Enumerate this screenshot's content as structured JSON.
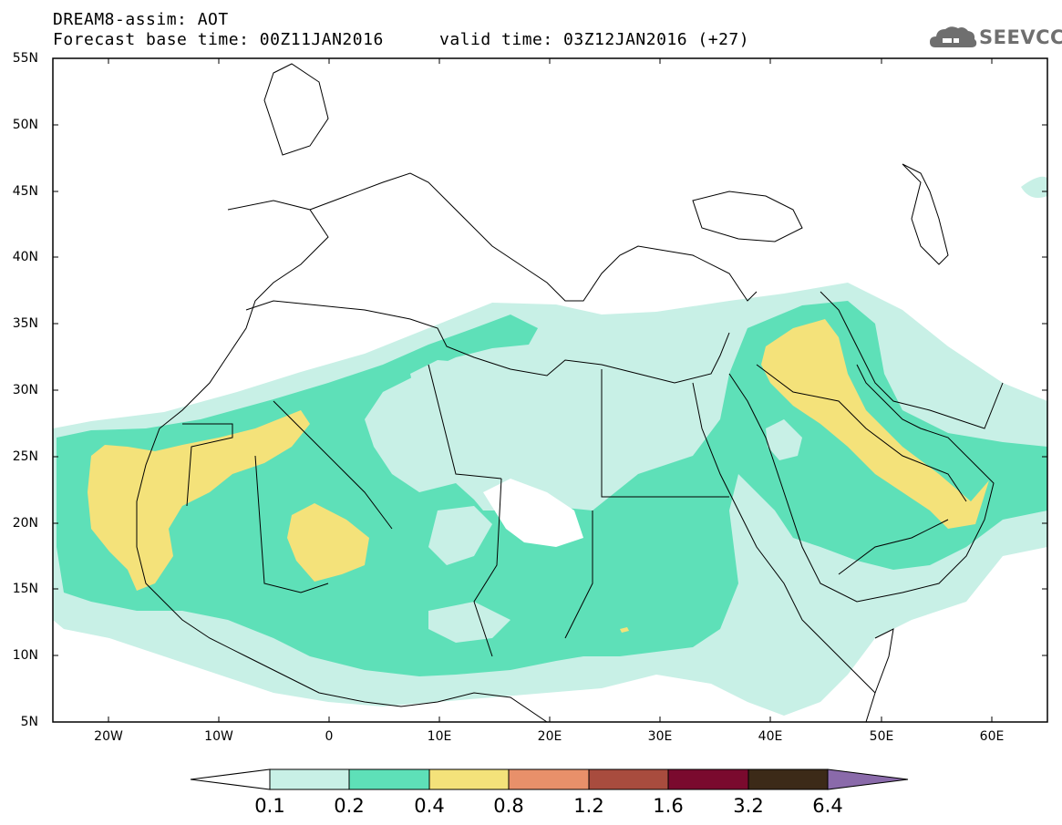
{
  "header": {
    "title": "DREAM8-assim: AOT",
    "base_time": "Forecast base time: 00Z11JAN2016",
    "valid_time": "valid time: 03Z12JAN2016 (+27)"
  },
  "logo": {
    "text": "SEEVCCC",
    "icon": "cloud-icon"
  },
  "map": {
    "lat_labels": [
      "55N",
      "50N",
      "45N",
      "40N",
      "35N",
      "30N",
      "25N",
      "20N",
      "15N",
      "10N",
      "5N"
    ],
    "lon_labels": [
      "20W",
      "10W",
      "0",
      "10E",
      "20E",
      "30E",
      "40E",
      "50E",
      "60E"
    ],
    "lon_range": [
      -25,
      65
    ],
    "lat_range": [
      5,
      55
    ],
    "projection": "lat-lon"
  },
  "colorbar": {
    "levels": [
      "0.1",
      "0.2",
      "0.4",
      "0.8",
      "1.2",
      "1.6",
      "3.2",
      "6.4"
    ],
    "colors": [
      "#ffffff",
      "#c8f0e6",
      "#5ee0b8",
      "#f4e27a",
      "#e8906a",
      "#a84c3e",
      "#7a0a2e",
      "#3c2a18",
      "#8a6aaa"
    ]
  }
}
